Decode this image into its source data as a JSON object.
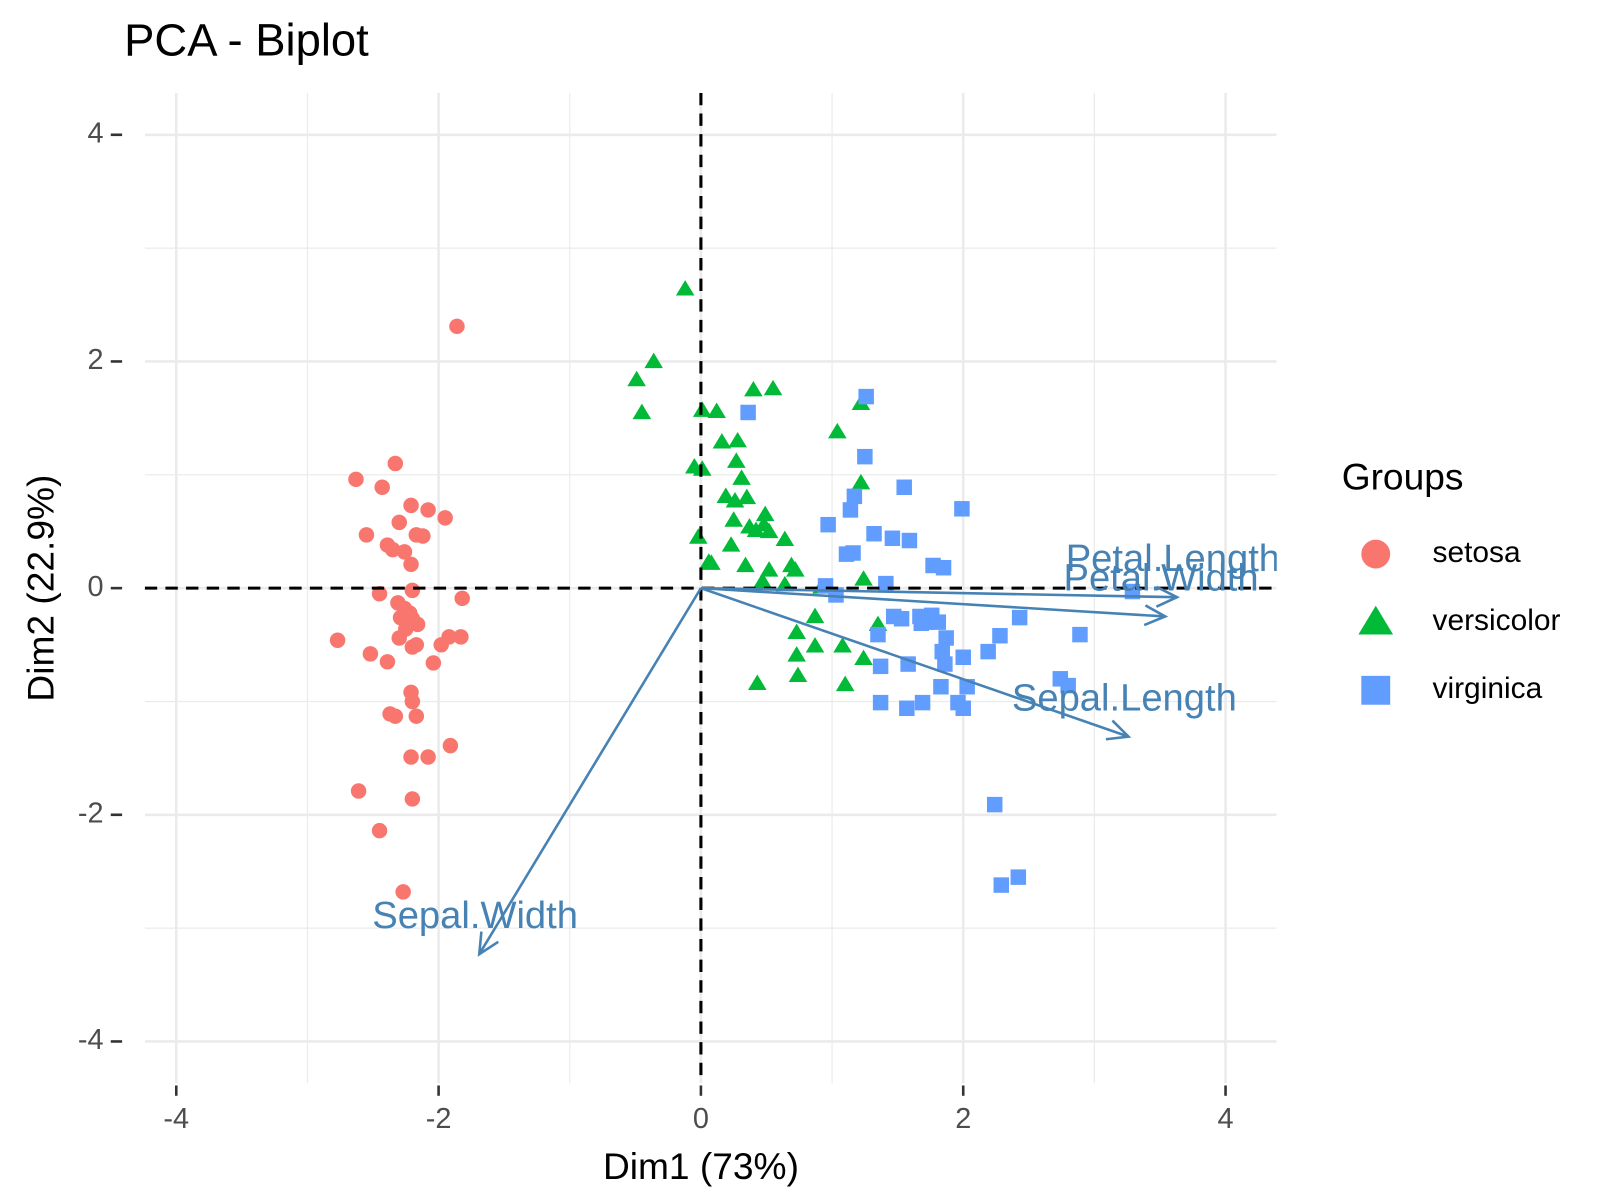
{
  "chart_data": {
    "type": "biplot",
    "title": "PCA - Biplot",
    "x_label": "Dim1 (73%)",
    "y_label": "Dim2 (22.9%)",
    "legend_title": "Groups",
    "legend_position": "right",
    "grid": true,
    "xlim": [
      -4.24,
      4.39
    ],
    "ylim": [
      -4.37,
      4.37
    ],
    "xticks": [
      -4,
      -2,
      0,
      2,
      4
    ],
    "yticks": [
      -4,
      -2,
      0,
      2,
      4
    ],
    "x_minor_grid": [
      -3,
      -1,
      1,
      3
    ],
    "y_minor_grid": [
      -3,
      -1,
      1,
      3
    ],
    "vline": 0,
    "hline": 0,
    "series": [
      {
        "name": "setosa",
        "color": "#F8766D",
        "shape": "circle",
        "x": [
          -1.86,
          -2.33,
          -2.63,
          -2.43,
          -2.21,
          -2.08,
          -1.95,
          -2.3,
          -2.55,
          -2.17,
          -2.12,
          -2.39,
          -2.35,
          -2.26,
          -2.21,
          -2.2,
          -2.45,
          -1.82,
          -2.31,
          -2.26,
          -2.22,
          -2.29,
          -2.2,
          -2.16,
          -2.25,
          -2.3,
          -1.83,
          -1.92,
          -1.98,
          -2.77,
          -2.17,
          -2.2,
          -2.52,
          -2.39,
          -2.04,
          -2.21,
          -2.2,
          -2.37,
          -2.33,
          -2.17,
          -1.91,
          -2.21,
          -2.08,
          -2.61,
          -2.2,
          -2.45,
          -2.27
        ],
        "values": [
          2.31,
          1.1,
          0.96,
          0.89,
          0.73,
          0.69,
          0.62,
          0.58,
          0.47,
          0.47,
          0.46,
          0.38,
          0.34,
          0.32,
          0.21,
          -0.02,
          -0.05,
          -0.09,
          -0.13,
          -0.18,
          -0.22,
          -0.26,
          -0.27,
          -0.32,
          -0.36,
          -0.44,
          -0.43,
          -0.43,
          -0.5,
          -0.46,
          -0.5,
          -0.52,
          -0.58,
          -0.65,
          -0.66,
          -0.92,
          -1.0,
          -1.11,
          -1.13,
          -1.13,
          -1.39,
          -1.49,
          -1.49,
          -1.79,
          -1.86,
          -2.14,
          -2.68
        ]
      },
      {
        "name": "versicolor",
        "color": "#00BA38",
        "shape": "triangle",
        "x": [
          -0.12,
          -0.36,
          -0.49,
          -0.45,
          0.01,
          0.12,
          0.4,
          0.55,
          1.22,
          1.04,
          0.16,
          0.28,
          -0.05,
          0.01,
          0.27,
          0.31,
          0.35,
          0.19,
          0.26,
          1.22,
          0.49,
          0.25,
          0.37,
          0.42,
          0.48,
          0.52,
          -0.02,
          0.23,
          0.64,
          0.08,
          0.34,
          0.06,
          0.52,
          0.69,
          0.72,
          0.47,
          0.64,
          1.24,
          0.92,
          1.35,
          0.87,
          0.73,
          1.08,
          0.87,
          0.73,
          1.24,
          0.74,
          0.43,
          1.1
        ],
        "values": [
          2.64,
          2.0,
          1.84,
          1.55,
          1.57,
          1.56,
          1.75,
          1.76,
          1.63,
          1.38,
          1.29,
          1.3,
          1.07,
          1.05,
          1.12,
          0.97,
          0.8,
          0.81,
          0.77,
          0.93,
          0.65,
          0.6,
          0.54,
          0.51,
          0.56,
          0.5,
          0.45,
          0.38,
          0.43,
          0.22,
          0.2,
          0.23,
          0.16,
          0.2,
          0.16,
          0.06,
          0.03,
          0.08,
          0.01,
          -0.32,
          -0.25,
          -0.39,
          -0.51,
          -0.51,
          -0.59,
          -0.62,
          -0.77,
          -0.84,
          -0.85
        ]
      },
      {
        "name": "virginica",
        "color": "#619CFF",
        "shape": "square",
        "x": [
          1.26,
          0.36,
          1.25,
          1.55,
          1.99,
          1.17,
          1.14,
          0.97,
          1.32,
          1.46,
          1.59,
          1.11,
          1.16,
          1.77,
          1.85,
          1.41,
          0.95,
          1.03,
          3.29,
          1.47,
          1.53,
          1.67,
          1.76,
          1.72,
          1.68,
          1.81,
          1.35,
          1.87,
          2.28,
          2.19,
          2.43,
          2.89,
          1.84,
          2.0,
          1.37,
          1.58,
          1.86,
          2.74,
          1.83,
          2.03,
          2.8,
          1.37,
          1.57,
          1.69,
          1.96,
          2.0,
          2.24,
          2.29,
          2.42
        ],
        "values": [
          1.69,
          1.55,
          1.16,
          0.89,
          0.7,
          0.81,
          0.69,
          0.56,
          0.48,
          0.44,
          0.42,
          0.3,
          0.31,
          0.2,
          0.18,
          0.04,
          0.02,
          -0.06,
          -0.03,
          -0.25,
          -0.27,
          -0.25,
          -0.24,
          -0.3,
          -0.31,
          -0.3,
          -0.41,
          -0.44,
          -0.42,
          -0.56,
          -0.26,
          -0.41,
          -0.56,
          -0.61,
          -0.69,
          -0.67,
          -0.67,
          -0.8,
          -0.87,
          -0.87,
          -0.86,
          -1.01,
          -1.06,
          -1.01,
          -1.01,
          -1.06,
          -1.91,
          -2.62,
          -2.55
        ]
      }
    ],
    "variables_color": "#4682B4",
    "variables": [
      {
        "name": "Petal.Length",
        "x": 3.63,
        "y": -0.08
      },
      {
        "name": "Petal.Width",
        "x": 3.54,
        "y": -0.25
      },
      {
        "name": "Sepal.Length",
        "x": 3.26,
        "y": -1.31
      },
      {
        "name": "Sepal.Width",
        "x": -1.69,
        "y": -3.23
      }
    ]
  }
}
